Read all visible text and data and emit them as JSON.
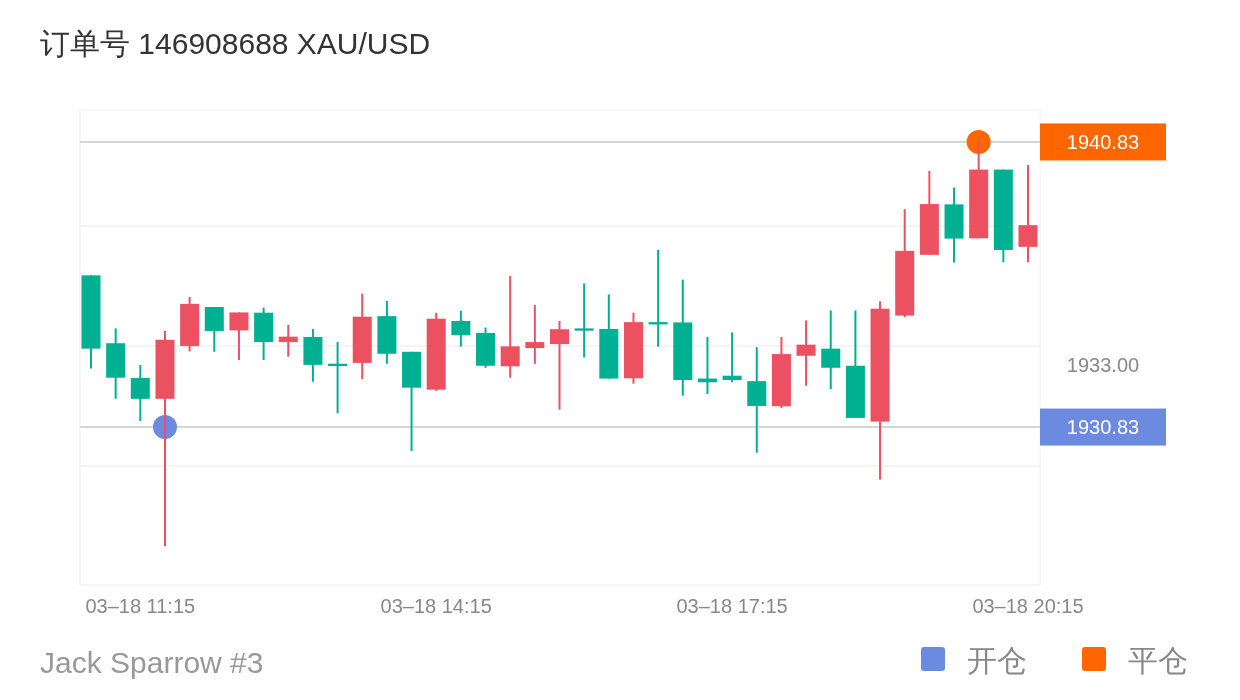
{
  "chart_data": {
    "type": "candlestick",
    "title": "订单号 146908688    XAU/USD",
    "categories": [
      null,
      null,
      "03–18 11:15",
      null,
      null,
      null,
      null,
      null,
      null,
      null,
      null,
      null,
      null,
      null,
      "03–18 14:15",
      null,
      null,
      null,
      null,
      null,
      null,
      null,
      null,
      null,
      null,
      null,
      "03–18 17:15",
      null,
      null,
      null,
      null,
      null,
      null,
      null,
      null,
      null,
      null,
      null,
      "03–18 20:15"
    ],
    "ohlc": [
      [
        1936.15,
        1936.15,
        1932.88,
        1933.58
      ],
      [
        1933.77,
        1934.29,
        1931.82,
        1932.56
      ],
      [
        1932.55,
        1933.01,
        1931.04,
        1931.82
      ],
      [
        1931.82,
        1934.2,
        1926.65,
        1933.89
      ],
      [
        1933.67,
        1935.39,
        1933.48,
        1935.15
      ],
      [
        1935.04,
        1935.04,
        1933.47,
        1934.2
      ],
      [
        1934.22,
        1934.85,
        1933.18,
        1934.85
      ],
      [
        1934.84,
        1935.02,
        1933.18,
        1933.81
      ],
      [
        1933.81,
        1934.41,
        1933.3,
        1934.0
      ],
      [
        1933.99,
        1934.27,
        1932.42,
        1933.01
      ],
      [
        1933.05,
        1933.82,
        1931.31,
        1932.97
      ],
      [
        1933.08,
        1935.51,
        1932.51,
        1934.7
      ],
      [
        1934.72,
        1935.25,
        1933.05,
        1933.4
      ],
      [
        1933.47,
        1933.47,
        1929.99,
        1932.21
      ],
      [
        1932.14,
        1934.84,
        1932.1,
        1934.63
      ],
      [
        1934.55,
        1934.91,
        1933.65,
        1934.05
      ],
      [
        1934.13,
        1934.32,
        1932.91,
        1932.98
      ],
      [
        1932.96,
        1936.13,
        1932.56,
        1933.66
      ],
      [
        1933.6,
        1935.11,
        1933.05,
        1933.81
      ],
      [
        1933.74,
        1934.55,
        1931.44,
        1934.26
      ],
      [
        1934.29,
        1935.87,
        1933.27,
        1934.21
      ],
      [
        1934.27,
        1935.48,
        1932.53,
        1932.53
      ],
      [
        1932.54,
        1934.84,
        1932.35,
        1934.51
      ],
      [
        1934.51,
        1937.04,
        1933.65,
        1934.43
      ],
      [
        1934.5,
        1936.0,
        1931.93,
        1932.48
      ],
      [
        1932.53,
        1933.99,
        1931.99,
        1932.4
      ],
      [
        1932.63,
        1934.15,
        1932.4,
        1932.48
      ],
      [
        1932.44,
        1933.63,
        1929.93,
        1931.57
      ],
      [
        1931.56,
        1933.99,
        1931.5,
        1933.39
      ],
      [
        1933.33,
        1934.57,
        1932.28,
        1933.72
      ],
      [
        1933.58,
        1934.92,
        1932.16,
        1932.91
      ],
      [
        1932.98,
        1934.92,
        1931.15,
        1931.15
      ],
      [
        1931.02,
        1935.24,
        1928.99,
        1934.98
      ],
      [
        1934.74,
        1938.47,
        1934.68,
        1937.01
      ],
      [
        1936.87,
        1939.81,
        1936.87,
        1938.65
      ],
      [
        1938.64,
        1939.23,
        1936.6,
        1937.44
      ],
      [
        1937.45,
        1940.83,
        1937.45,
        1939.86
      ],
      [
        1939.86,
        1939.86,
        1936.61,
        1937.04
      ],
      [
        1937.15,
        1940.02,
        1936.61,
        1937.91
      ]
    ],
    "colors": [
      "#00b092",
      "#00b092",
      "#00b092",
      "#eb5160",
      "#eb5160",
      "#00b092",
      "#eb5160",
      "#00b092",
      "#eb5160",
      "#00b092",
      "#00b092",
      "#eb5160",
      "#00b092",
      "#00b092",
      "#eb5160",
      "#00b092",
      "#00b092",
      "#eb5160",
      "#eb5160",
      "#eb5160",
      "#00b092",
      "#00b092",
      "#eb5160",
      "#00b092",
      "#00b092",
      "#00b092",
      "#00b092",
      "#00b092",
      "#eb5160",
      "#eb5160",
      "#00b092",
      "#00b092",
      "#eb5160",
      "#eb5160",
      "#eb5160",
      "#00b092",
      "#eb5160",
      "#00b092",
      "#eb5160"
    ],
    "series": [
      {
        "name": "开仓",
        "type": "scatter",
        "color": "#6b8ae0",
        "values": [
          null,
          null,
          null,
          1930.83,
          null,
          null,
          null,
          null,
          null,
          null,
          null,
          null,
          null,
          null,
          null,
          null,
          null,
          null,
          null,
          null,
          null,
          null,
          null,
          null,
          null,
          null,
          null,
          null,
          null,
          null,
          null,
          null,
          null,
          null,
          null,
          null,
          null,
          null,
          null
        ]
      },
      {
        "name": "平仓",
        "type": "scatter",
        "color": "#ff6600",
        "values": [
          null,
          null,
          null,
          null,
          null,
          null,
          null,
          null,
          null,
          null,
          null,
          null,
          null,
          null,
          null,
          null,
          null,
          null,
          null,
          null,
          null,
          null,
          null,
          null,
          null,
          null,
          null,
          null,
          null,
          null,
          null,
          null,
          null,
          null,
          null,
          null,
          1940.83,
          null,
          null
        ]
      }
    ],
    "marker": "circle",
    "ylim": [
      1925.29,
      1941.95
    ],
    "yticks": [
      {
        "value": 1937.88,
        "label": null
      },
      {
        "value": 1933.67,
        "label": null
      },
      {
        "value": 1929.46,
        "label": null
      },
      {
        "value": 1933,
        "label": "1933.00"
      },
      {
        "value": 1940.83,
        "label": "1940.83"
      },
      {
        "value": 1930.83,
        "label": "1930.83"
      }
    ],
    "grid": "y",
    "legend": "bottom right",
    "annotations": [
      "Jack Sparrow #3"
    ]
  }
}
